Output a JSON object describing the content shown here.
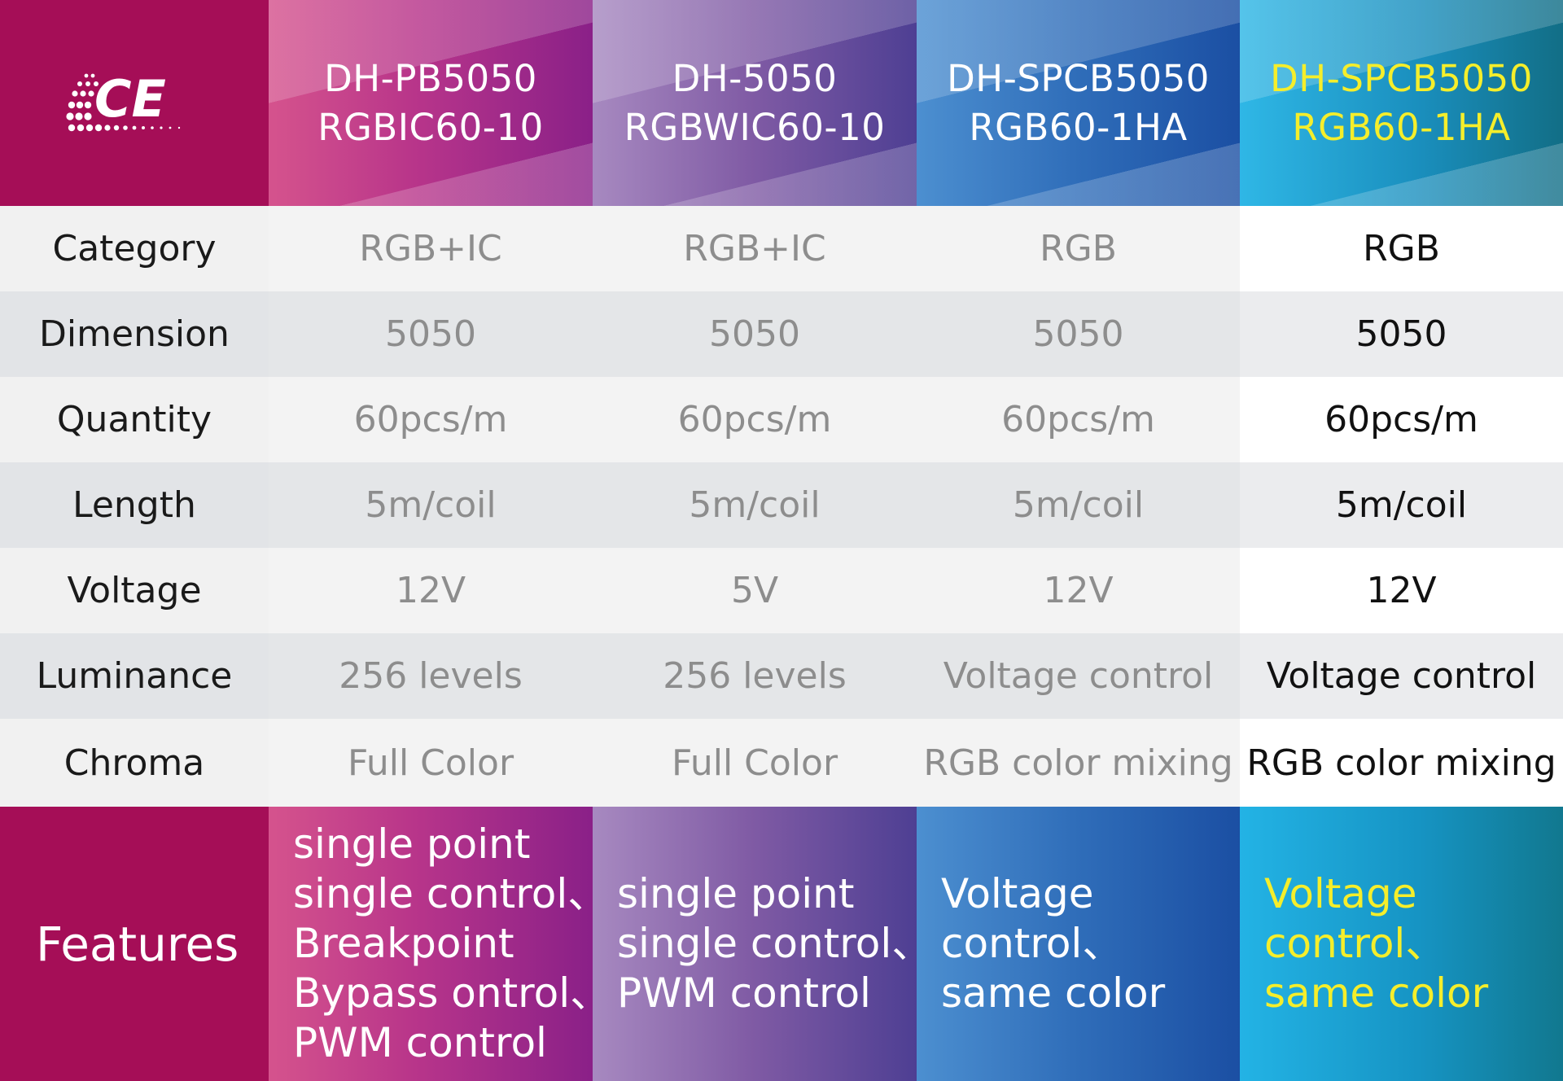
{
  "brand": {
    "logo_text": "CE"
  },
  "products": [
    {
      "line1": "DH-PB5050",
      "line2": "RGBIC60-10"
    },
    {
      "line1": "DH-5050",
      "line2": "RGBWIC60-10"
    },
    {
      "line1": "DH-SPCB5050",
      "line2": "RGB60-1HA"
    },
    {
      "line1": "DH-SPCB5050",
      "line2": "RGB60-1HA"
    }
  ],
  "rows": [
    {
      "label": "Category",
      "values": [
        "RGB+IC",
        "RGB+IC",
        "RGB",
        "RGB"
      ]
    },
    {
      "label": "Dimension",
      "values": [
        "5050",
        "5050",
        "5050",
        "5050"
      ]
    },
    {
      "label": "Quantity",
      "values": [
        "60pcs/m",
        "60pcs/m",
        "60pcs/m",
        "60pcs/m"
      ]
    },
    {
      "label": "Length",
      "values": [
        "5m/coil",
        "5m/coil",
        "5m/coil",
        "5m/coil"
      ]
    },
    {
      "label": "Voltage",
      "values": [
        "12V",
        "5V",
        "12V",
        "12V"
      ]
    },
    {
      "label": "Luminance",
      "values": [
        "256 levels",
        "256 levels",
        "Voltage control",
        "Voltage control"
      ]
    },
    {
      "label": "Chroma",
      "values": [
        "Full Color",
        "Full Color",
        "RGB color mixing",
        "RGB color mixing"
      ]
    }
  ],
  "features": {
    "label": "Features",
    "columns": [
      [
        "single point",
        "single control、",
        "Breakpoint",
        "Bypass ontrol、",
        "PWM control"
      ],
      [
        "single point",
        "single control、",
        "PWM control"
      ],
      [
        "Voltage",
        "control、",
        "same color"
      ],
      [
        "Voltage",
        "control、",
        "same color"
      ]
    ]
  },
  "colors": {
    "brand_magenta": "#a50e57",
    "highlight_yellow": "#f5ee2b",
    "muted_value_gray": "#8d8d8d"
  }
}
